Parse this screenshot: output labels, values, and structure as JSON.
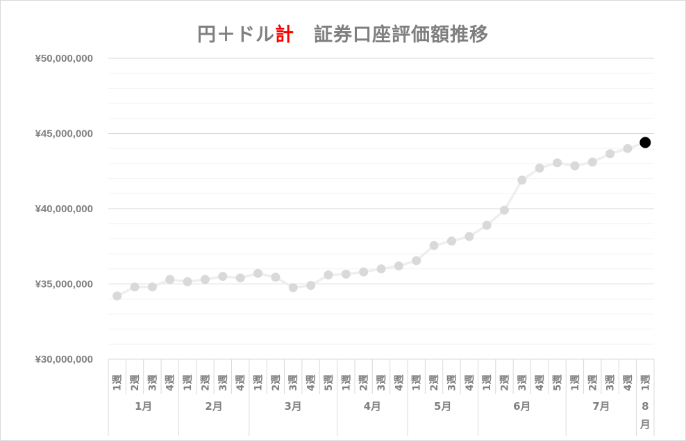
{
  "chart_data": {
    "type": "line",
    "title_parts": [
      "円＋ドル",
      "計",
      "　証券口座評価額推移"
    ],
    "accent_color": "#ff0000",
    "ylim": [
      30000000,
      50000000
    ],
    "y_ticks": [
      {
        "value": 50000000,
        "label": "¥50,000,000"
      },
      {
        "value": 45000000,
        "label": "¥45,000,000"
      },
      {
        "value": 40000000,
        "label": "¥40,000,000"
      },
      {
        "value": 35000000,
        "label": "¥35,000,000"
      },
      {
        "value": 30000000,
        "label": "¥30,000,000"
      }
    ],
    "minor_step": 1000000,
    "months": [
      {
        "label": "1月",
        "weeks": [
          "1週",
          "2週",
          "3週",
          "4週"
        ]
      },
      {
        "label": "2月",
        "weeks": [
          "1週",
          "2週",
          "3週",
          "4週"
        ]
      },
      {
        "label": "3月",
        "weeks": [
          "1週",
          "2週",
          "3週",
          "4週",
          "5週"
        ]
      },
      {
        "label": "4月",
        "weeks": [
          "1週",
          "2週",
          "3週",
          "4週"
        ]
      },
      {
        "label": "5月",
        "weeks": [
          "1週",
          "2週",
          "3週",
          "4週"
        ]
      },
      {
        "label": "6月",
        "weeks": [
          "1週",
          "2週",
          "3週",
          "4週",
          "5週"
        ]
      },
      {
        "label": "7月",
        "weeks": [
          "1週",
          "2週",
          "3週",
          "4週"
        ]
      },
      {
        "label": "8月",
        "weeks": [
          "1週"
        ]
      }
    ],
    "series": [
      {
        "values": [
          34200000,
          34800000,
          34800000,
          35300000,
          35150000,
          35300000,
          35500000,
          35400000,
          35700000,
          35450000,
          34750000,
          34900000,
          35600000,
          35650000,
          35800000,
          36000000,
          36200000,
          36550000,
          37550000,
          37850000,
          38150000,
          38900000,
          39900000,
          41900000,
          42700000,
          43050000,
          42850000,
          43100000,
          43650000,
          44000000,
          44400000
        ],
        "color": "#e6e6e6",
        "highlight_color": "#000000"
      }
    ],
    "grid": true,
    "legend": "none"
  }
}
